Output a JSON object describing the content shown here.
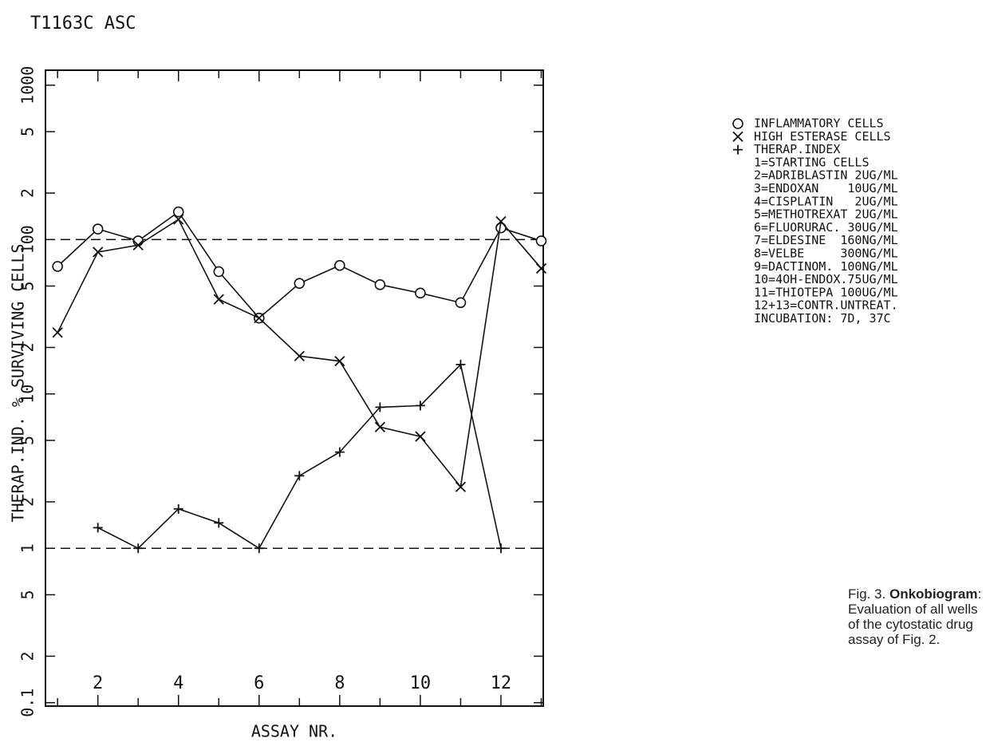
{
  "chart_data": {
    "type": "line",
    "title": "T1163C ASC",
    "x_label": "ASSAY NR.",
    "y_label": "THERAP.IND.  % SURVIVING CELLS",
    "x": [
      1,
      2,
      3,
      4,
      5,
      6,
      7,
      8,
      9,
      10,
      11,
      12,
      13
    ],
    "series": [
      {
        "name": "INFLAMMATORY CELLS",
        "marker": "circle",
        "color": "#111",
        "values": [
          67,
          117,
          98,
          151,
          62,
          31,
          52,
          68,
          51,
          45,
          39,
          119,
          98
        ]
      },
      {
        "name": "HIGH ESTERASE CELLS",
        "marker": "cross",
        "color": "#111",
        "values": [
          25,
          83,
          92,
          135,
          41,
          31,
          17.6,
          16.3,
          6.1,
          5.3,
          2.5,
          131,
          65
        ]
      },
      {
        "name": "THERAP.INDEX",
        "marker": "plus",
        "color": "#111",
        "values": [
          null,
          1.36,
          1,
          1.8,
          1.46,
          1,
          2.95,
          4.2,
          8.2,
          8.4,
          15.5,
          1,
          null
        ]
      }
    ],
    "legend_notes": [
      "1=STARTING CELLS",
      "2=ADRIBLASTIN 2UG/ML",
      "3=ENDOXAN    10UG/ML",
      "4=CISPLATIN   2UG/ML",
      "5=METHOTREXAT 2UG/ML",
      "6=FLUORURAC. 30UG/ML",
      "7=ELDESINE  160NG/ML",
      "8=VELBE     300NG/ML",
      "9=DACTINOM. 100NG/ML",
      "10=4OH-ENDOX.75UG/ML",
      "11=THIOTEPA 100UG/ML",
      "12+13=CONTR.UNTREAT.",
      "INCUBATION: 7D, 37C"
    ],
    "log_y": true,
    "xlim": [
      0.7,
      13.05
    ],
    "ylim": [
      0.095,
      1250
    ],
    "xticks": [
      2,
      4,
      6,
      8,
      10,
      12
    ],
    "x_minor_ticks": true,
    "yticks": [
      {
        "value": 0.1,
        "label": "0.1"
      },
      {
        "value": 0.2,
        "label": "2"
      },
      {
        "value": 0.5,
        "label": "5"
      },
      1,
      2,
      5,
      10,
      {
        "value": 20,
        "label": "2"
      },
      {
        "value": 50,
        "label": "5"
      },
      100,
      {
        "value": 200,
        "label": "2"
      },
      {
        "value": 500,
        "label": "5"
      },
      1000
    ],
    "hlines": [
      100,
      1
    ],
    "hline_style": "dashed"
  },
  "caption": {
    "label": "Fig. 3.",
    "bold": "Onkobiogram",
    "text": ": Evaluation of all wells of the  cytostatic drug assay of Fig. 2."
  }
}
